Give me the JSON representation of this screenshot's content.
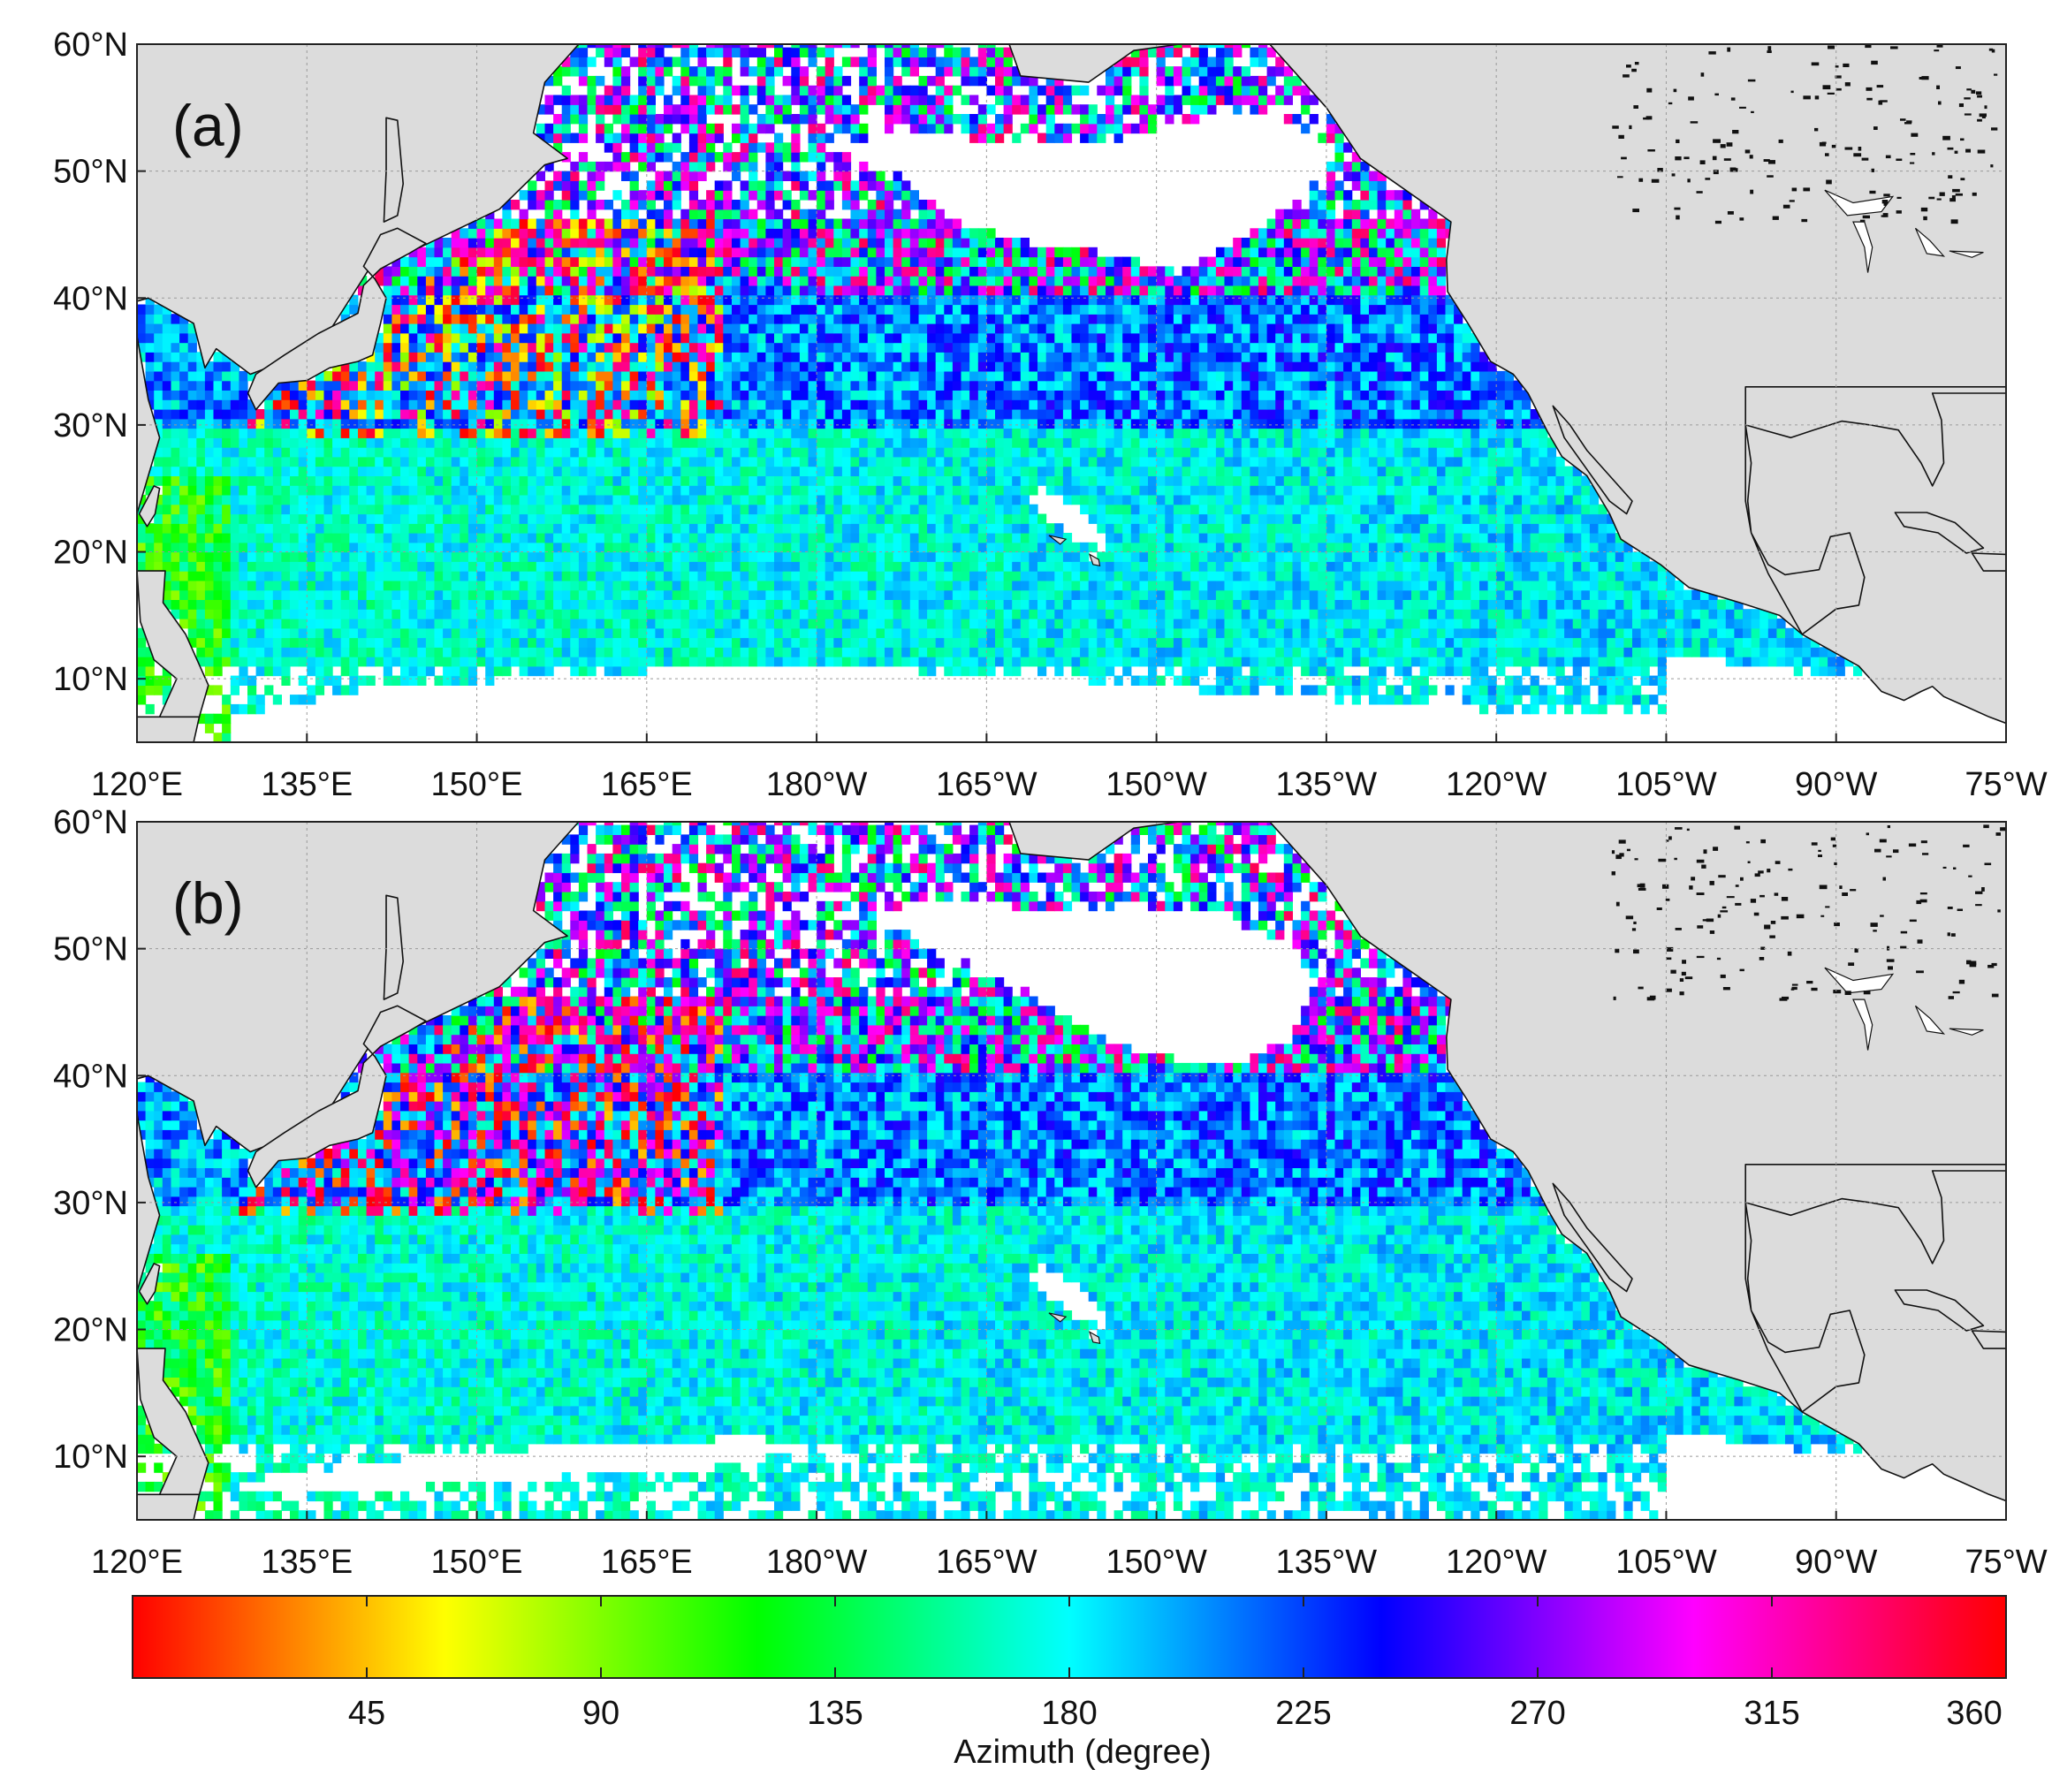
{
  "panels": [
    {
      "label": "(a)"
    },
    {
      "label": "(b)"
    }
  ],
  "axes": {
    "lon_ticks": [
      "120°E",
      "135°E",
      "150°E",
      "165°E",
      "180°W",
      "165°W",
      "150°W",
      "135°W",
      "120°W",
      "105°W",
      "90°W",
      "75°W"
    ],
    "lat_ticks": [
      "60°N",
      "50°N",
      "40°N",
      "30°N",
      "20°N",
      "10°N"
    ],
    "lon_range": [
      120,
      285
    ],
    "lat_range": [
      5,
      60
    ]
  },
  "colorbar": {
    "label": "Azimuth (degree)",
    "range": [
      0,
      360
    ],
    "ticks": [
      "45",
      "90",
      "135",
      "180",
      "225",
      "270",
      "315",
      "360"
    ],
    "tick_values": [
      45,
      90,
      135,
      180,
      225,
      270,
      315,
      360
    ],
    "colormap": [
      "#ff0000",
      "#ffff00",
      "#00ff00",
      "#00ffff",
      "#0000ff",
      "#ff00ff",
      "#ff0000"
    ]
  },
  "colors": {
    "land": "#dcdcdc",
    "ocean_no_data": "#ffffff",
    "coast": "#111111"
  }
}
